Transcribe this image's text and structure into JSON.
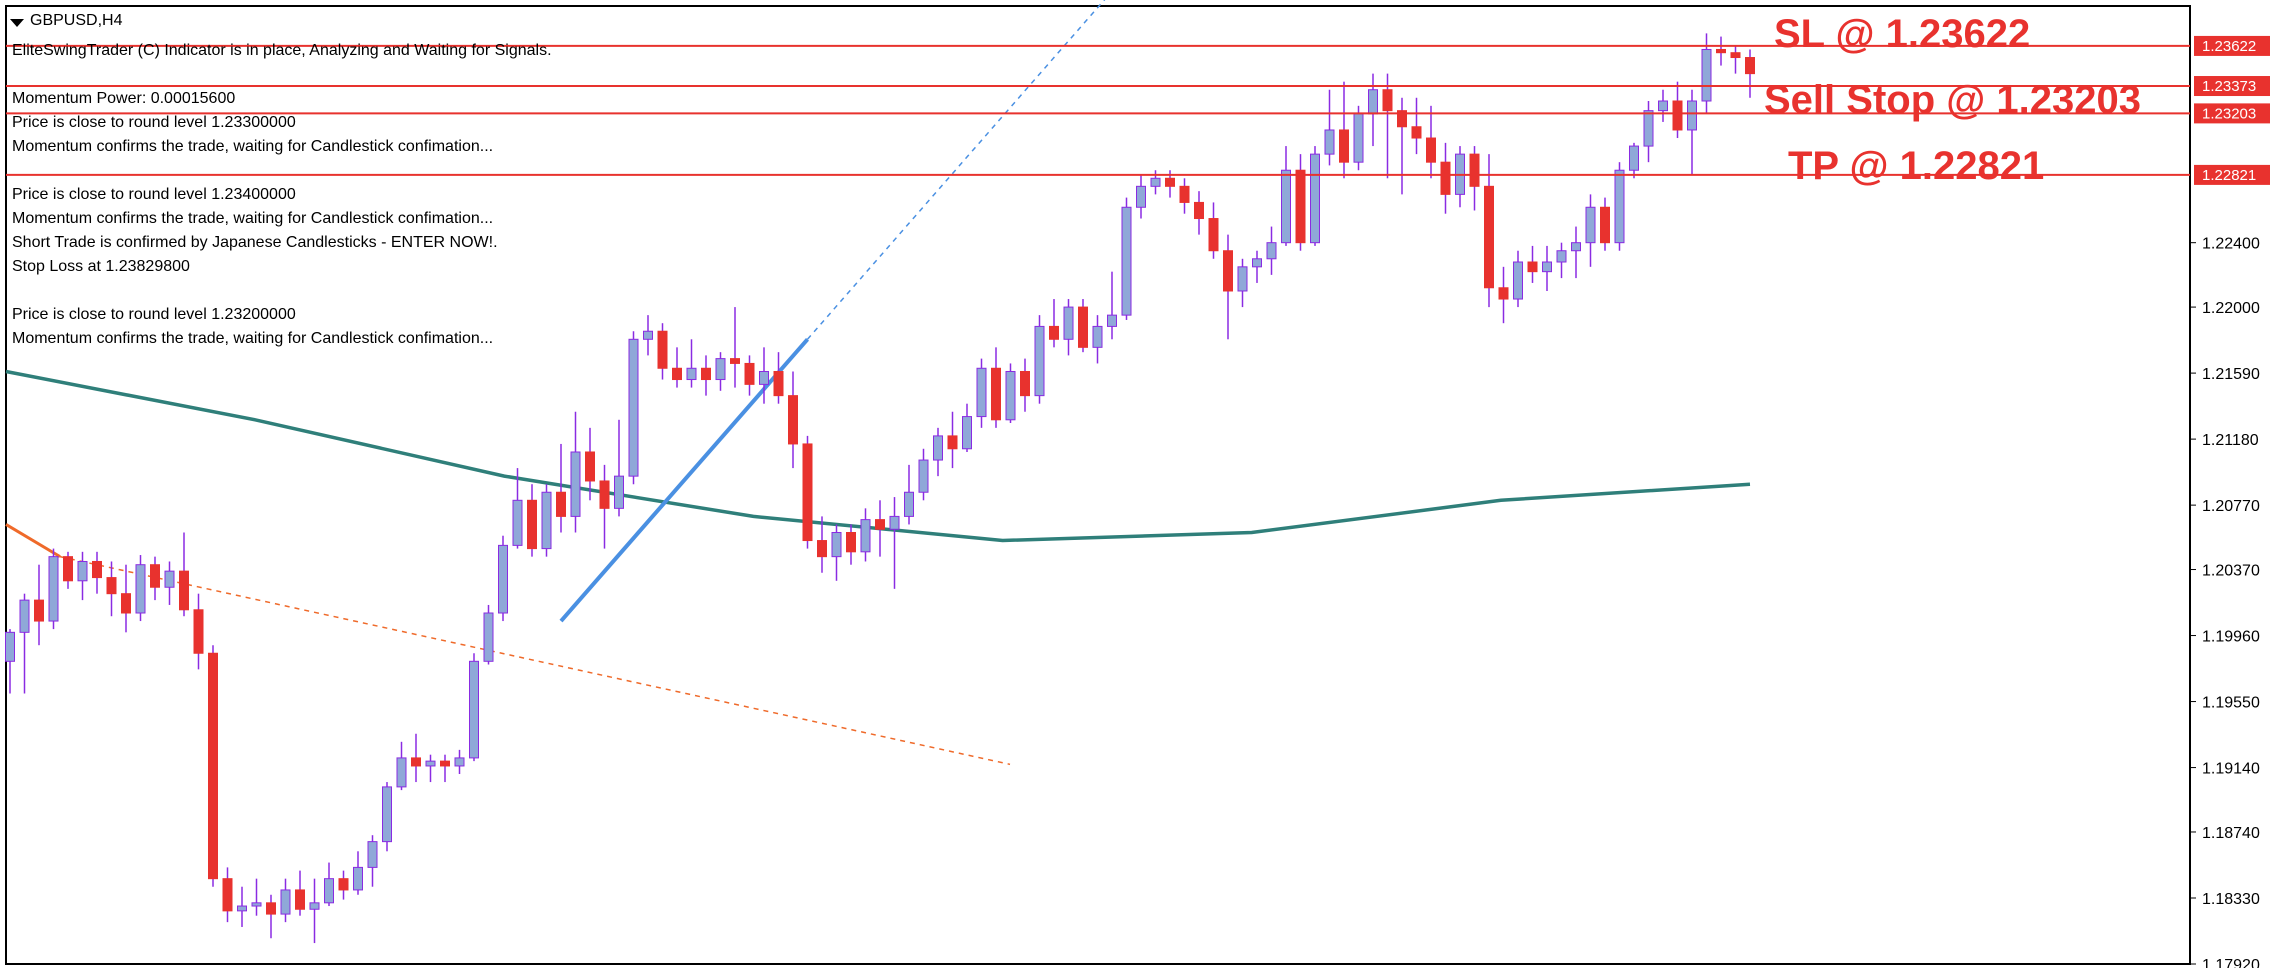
{
  "window": {
    "symbol_title": "GBPUSD,H4"
  },
  "indicator_messages": [
    "EliteSwingTrader (C) Indicator is in place, Analyzing and Waiting for Signals.",
    "Momentum Power: 0.00015600",
    "Price is close to round level 1.23300000",
    "Momentum confirms the trade, waiting for Candlestick confimation...",
    "Price is close to round level 1.23400000",
    "Momentum confirms the trade, waiting for Candlestick confimation...",
    "Short Trade is confirmed by Japanese Candlesticks - ENTER NOW!.",
    "Stop Loss at 1.23829800",
    "Price is close to round level 1.23200000",
    "Momentum confirms the trade, waiting for Candlestick confimation..."
  ],
  "chart_data": {
    "type": "candlestick",
    "symbol": "GBPUSD",
    "timeframe": "H4",
    "ylim": [
      1.1792,
      1.2387
    ],
    "ytick_labels": [
      "1.22400",
      "1.22000",
      "1.21590",
      "1.21180",
      "1.20770",
      "1.20370",
      "1.19960",
      "1.19550",
      "1.19140",
      "1.18740",
      "1.18330",
      "1.17920"
    ],
    "ytick_values": [
      1.224,
      1.22,
      1.2159,
      1.2118,
      1.2077,
      1.2037,
      1.1996,
      1.1955,
      1.1914,
      1.1874,
      1.1833,
      1.1792
    ],
    "horizontal_levels": [
      {
        "label": "SL @ 1.23622",
        "price": 1.23622,
        "tag": "1.23622"
      },
      {
        "label": "",
        "price": 1.23373,
        "tag": "1.23373"
      },
      {
        "label": "Sell Stop @ 1.23203",
        "price": 1.23203,
        "tag": "1.23203"
      },
      {
        "label": "TP @ 1.22821",
        "price": 1.22821,
        "tag": "1.22821"
      }
    ],
    "candles": [
      {
        "o": 1.198,
        "h": 1.2,
        "l": 1.196,
        "c": 1.1998
      },
      {
        "o": 1.1998,
        "h": 1.2022,
        "l": 1.196,
        "c": 1.2018
      },
      {
        "o": 1.2018,
        "h": 1.204,
        "l": 1.199,
        "c": 1.2005
      },
      {
        "o": 1.2005,
        "h": 1.205,
        "l": 1.2,
        "c": 1.2045
      },
      {
        "o": 1.2045,
        "h": 1.2048,
        "l": 1.2025,
        "c": 1.203
      },
      {
        "o": 1.203,
        "h": 1.2048,
        "l": 1.2018,
        "c": 1.2042
      },
      {
        "o": 1.2042,
        "h": 1.2048,
        "l": 1.2022,
        "c": 1.2032
      },
      {
        "o": 1.2032,
        "h": 1.2042,
        "l": 1.2008,
        "c": 1.2022
      },
      {
        "o": 1.2022,
        "h": 1.204,
        "l": 1.1998,
        "c": 1.201
      },
      {
        "o": 1.201,
        "h": 1.2046,
        "l": 1.2005,
        "c": 1.204
      },
      {
        "o": 1.204,
        "h": 1.2045,
        "l": 1.2018,
        "c": 1.2026
      },
      {
        "o": 1.2026,
        "h": 1.2042,
        "l": 1.2015,
        "c": 1.2036
      },
      {
        "o": 1.2036,
        "h": 1.206,
        "l": 1.2008,
        "c": 1.2012
      },
      {
        "o": 1.2012,
        "h": 1.2022,
        "l": 1.1975,
        "c": 1.1985
      },
      {
        "o": 1.1985,
        "h": 1.199,
        "l": 1.184,
        "c": 1.1845
      },
      {
        "o": 1.1845,
        "h": 1.1852,
        "l": 1.1818,
        "c": 1.1825
      },
      {
        "o": 1.1825,
        "h": 1.184,
        "l": 1.1815,
        "c": 1.1828
      },
      {
        "o": 1.1828,
        "h": 1.1845,
        "l": 1.1822,
        "c": 1.183
      },
      {
        "o": 1.183,
        "h": 1.1835,
        "l": 1.1808,
        "c": 1.1823
      },
      {
        "o": 1.1823,
        "h": 1.1845,
        "l": 1.1818,
        "c": 1.1838
      },
      {
        "o": 1.1838,
        "h": 1.185,
        "l": 1.1822,
        "c": 1.1826
      },
      {
        "o": 1.1826,
        "h": 1.1845,
        "l": 1.1805,
        "c": 1.183
      },
      {
        "o": 1.183,
        "h": 1.1855,
        "l": 1.1828,
        "c": 1.1845
      },
      {
        "o": 1.1845,
        "h": 1.185,
        "l": 1.1832,
        "c": 1.1838
      },
      {
        "o": 1.1838,
        "h": 1.1862,
        "l": 1.1835,
        "c": 1.1852
      },
      {
        "o": 1.1852,
        "h": 1.1872,
        "l": 1.184,
        "c": 1.1868
      },
      {
        "o": 1.1868,
        "h": 1.1905,
        "l": 1.1862,
        "c": 1.1902
      },
      {
        "o": 1.1902,
        "h": 1.193,
        "l": 1.19,
        "c": 1.192
      },
      {
        "o": 1.192,
        "h": 1.1935,
        "l": 1.1905,
        "c": 1.1915
      },
      {
        "o": 1.1915,
        "h": 1.1922,
        "l": 1.1905,
        "c": 1.1918
      },
      {
        "o": 1.1918,
        "h": 1.1922,
        "l": 1.1905,
        "c": 1.1915
      },
      {
        "o": 1.1915,
        "h": 1.1925,
        "l": 1.191,
        "c": 1.192
      },
      {
        "o": 1.192,
        "h": 1.1985,
        "l": 1.1918,
        "c": 1.198
      },
      {
        "o": 1.198,
        "h": 1.2015,
        "l": 1.1978,
        "c": 1.201
      },
      {
        "o": 1.201,
        "h": 1.2058,
        "l": 1.2005,
        "c": 1.2052
      },
      {
        "o": 1.2052,
        "h": 1.21,
        "l": 1.205,
        "c": 1.208
      },
      {
        "o": 1.208,
        "h": 1.209,
        "l": 1.2045,
        "c": 1.205
      },
      {
        "o": 1.205,
        "h": 1.209,
        "l": 1.2045,
        "c": 1.2085
      },
      {
        "o": 1.2085,
        "h": 1.2115,
        "l": 1.206,
        "c": 1.207
      },
      {
        "o": 1.207,
        "h": 1.2135,
        "l": 1.206,
        "c": 1.211
      },
      {
        "o": 1.211,
        "h": 1.2125,
        "l": 1.208,
        "c": 1.2092
      },
      {
        "o": 1.2092,
        "h": 1.2102,
        "l": 1.205,
        "c": 1.2075
      },
      {
        "o": 1.2075,
        "h": 1.213,
        "l": 1.207,
        "c": 1.2095
      },
      {
        "o": 1.2095,
        "h": 1.2185,
        "l": 1.209,
        "c": 1.218
      },
      {
        "o": 1.218,
        "h": 1.2195,
        "l": 1.217,
        "c": 1.2185
      },
      {
        "o": 1.2185,
        "h": 1.219,
        "l": 1.2155,
        "c": 1.2162
      },
      {
        "o": 1.2162,
        "h": 1.2175,
        "l": 1.215,
        "c": 1.2155
      },
      {
        "o": 1.2155,
        "h": 1.218,
        "l": 1.215,
        "c": 1.2162
      },
      {
        "o": 1.2162,
        "h": 1.217,
        "l": 1.2145,
        "c": 1.2155
      },
      {
        "o": 1.2155,
        "h": 1.2172,
        "l": 1.2148,
        "c": 1.2168
      },
      {
        "o": 1.2168,
        "h": 1.22,
        "l": 1.215,
        "c": 1.2165
      },
      {
        "o": 1.2165,
        "h": 1.217,
        "l": 1.2145,
        "c": 1.2152
      },
      {
        "o": 1.2152,
        "h": 1.2175,
        "l": 1.214,
        "c": 1.216
      },
      {
        "o": 1.216,
        "h": 1.2172,
        "l": 1.214,
        "c": 1.2145
      },
      {
        "o": 1.2145,
        "h": 1.216,
        "l": 1.21,
        "c": 1.2115
      },
      {
        "o": 1.2115,
        "h": 1.212,
        "l": 1.205,
        "c": 1.2055
      },
      {
        "o": 1.2055,
        "h": 1.207,
        "l": 1.2035,
        "c": 1.2045
      },
      {
        "o": 1.2045,
        "h": 1.2065,
        "l": 1.203,
        "c": 1.206
      },
      {
        "o": 1.206,
        "h": 1.2065,
        "l": 1.204,
        "c": 1.2048
      },
      {
        "o": 1.2048,
        "h": 1.2075,
        "l": 1.2042,
        "c": 1.2068
      },
      {
        "o": 1.2068,
        "h": 1.208,
        "l": 1.2045,
        "c": 1.2062
      },
      {
        "o": 1.2062,
        "h": 1.2082,
        "l": 1.2025,
        "c": 1.207
      },
      {
        "o": 1.207,
        "h": 1.2102,
        "l": 1.2065,
        "c": 1.2085
      },
      {
        "o": 1.2085,
        "h": 1.2112,
        "l": 1.208,
        "c": 1.2105
      },
      {
        "o": 1.2105,
        "h": 1.2125,
        "l": 1.2095,
        "c": 1.212
      },
      {
        "o": 1.212,
        "h": 1.2135,
        "l": 1.21,
        "c": 1.2112
      },
      {
        "o": 1.2112,
        "h": 1.214,
        "l": 1.211,
        "c": 1.2132
      },
      {
        "o": 1.2132,
        "h": 1.2168,
        "l": 1.2125,
        "c": 1.2162
      },
      {
        "o": 1.2162,
        "h": 1.2175,
        "l": 1.2125,
        "c": 1.213
      },
      {
        "o": 1.213,
        "h": 1.2165,
        "l": 1.2128,
        "c": 1.216
      },
      {
        "o": 1.216,
        "h": 1.2168,
        "l": 1.2135,
        "c": 1.2145
      },
      {
        "o": 1.2145,
        "h": 1.2195,
        "l": 1.214,
        "c": 1.2188
      },
      {
        "o": 1.2188,
        "h": 1.2205,
        "l": 1.2175,
        "c": 1.218
      },
      {
        "o": 1.218,
        "h": 1.2205,
        "l": 1.217,
        "c": 1.22
      },
      {
        "o": 1.22,
        "h": 1.2205,
        "l": 1.2172,
        "c": 1.2175
      },
      {
        "o": 1.2175,
        "h": 1.2195,
        "l": 1.2165,
        "c": 1.2188
      },
      {
        "o": 1.2188,
        "h": 1.2222,
        "l": 1.218,
        "c": 1.2195
      },
      {
        "o": 1.2195,
        "h": 1.2268,
        "l": 1.2192,
        "c": 1.2262
      },
      {
        "o": 1.2262,
        "h": 1.2282,
        "l": 1.2255,
        "c": 1.2275
      },
      {
        "o": 1.2275,
        "h": 1.2285,
        "l": 1.227,
        "c": 1.228
      },
      {
        "o": 1.228,
        "h": 1.2285,
        "l": 1.2268,
        "c": 1.2275
      },
      {
        "o": 1.2275,
        "h": 1.228,
        "l": 1.2258,
        "c": 1.2265
      },
      {
        "o": 1.2265,
        "h": 1.2272,
        "l": 1.2245,
        "c": 1.2255
      },
      {
        "o": 1.2255,
        "h": 1.2265,
        "l": 1.223,
        "c": 1.2235
      },
      {
        "o": 1.2235,
        "h": 1.2245,
        "l": 1.218,
        "c": 1.221
      },
      {
        "o": 1.221,
        "h": 1.223,
        "l": 1.22,
        "c": 1.2225
      },
      {
        "o": 1.2225,
        "h": 1.2235,
        "l": 1.2215,
        "c": 1.223
      },
      {
        "o": 1.223,
        "h": 1.225,
        "l": 1.222,
        "c": 1.224
      },
      {
        "o": 1.224,
        "h": 1.23,
        "l": 1.2238,
        "c": 1.2285
      },
      {
        "o": 1.2285,
        "h": 1.2295,
        "l": 1.2235,
        "c": 1.224
      },
      {
        "o": 1.224,
        "h": 1.23,
        "l": 1.2238,
        "c": 1.2295
      },
      {
        "o": 1.2295,
        "h": 1.2335,
        "l": 1.2288,
        "c": 1.231
      },
      {
        "o": 1.231,
        "h": 1.234,
        "l": 1.228,
        "c": 1.229
      },
      {
        "o": 1.229,
        "h": 1.2325,
        "l": 1.2285,
        "c": 1.232
      },
      {
        "o": 1.232,
        "h": 1.2345,
        "l": 1.23,
        "c": 1.2335
      },
      {
        "o": 1.2335,
        "h": 1.2345,
        "l": 1.228,
        "c": 1.2322
      },
      {
        "o": 1.2322,
        "h": 1.233,
        "l": 1.227,
        "c": 1.2312
      },
      {
        "o": 1.2312,
        "h": 1.233,
        "l": 1.2295,
        "c": 1.2305
      },
      {
        "o": 1.2305,
        "h": 1.2325,
        "l": 1.228,
        "c": 1.229
      },
      {
        "o": 1.229,
        "h": 1.2302,
        "l": 1.2258,
        "c": 1.227
      },
      {
        "o": 1.227,
        "h": 1.23,
        "l": 1.2262,
        "c": 1.2295
      },
      {
        "o": 1.2295,
        "h": 1.23,
        "l": 1.226,
        "c": 1.2275
      },
      {
        "o": 1.2275,
        "h": 1.2295,
        "l": 1.22,
        "c": 1.2212
      },
      {
        "o": 1.2212,
        "h": 1.2225,
        "l": 1.219,
        "c": 1.2205
      },
      {
        "o": 1.2205,
        "h": 1.2235,
        "l": 1.22,
        "c": 1.2228
      },
      {
        "o": 1.2228,
        "h": 1.2238,
        "l": 1.2215,
        "c": 1.2222
      },
      {
        "o": 1.2222,
        "h": 1.2238,
        "l": 1.221,
        "c": 1.2228
      },
      {
        "o": 1.2228,
        "h": 1.224,
        "l": 1.2218,
        "c": 1.2235
      },
      {
        "o": 1.2235,
        "h": 1.225,
        "l": 1.2218,
        "c": 1.224
      },
      {
        "o": 1.224,
        "h": 1.227,
        "l": 1.2225,
        "c": 1.2262
      },
      {
        "o": 1.2262,
        "h": 1.2268,
        "l": 1.2235,
        "c": 1.224
      },
      {
        "o": 1.224,
        "h": 1.229,
        "l": 1.2235,
        "c": 1.2285
      },
      {
        "o": 1.2285,
        "h": 1.2302,
        "l": 1.228,
        "c": 1.23
      },
      {
        "o": 1.23,
        "h": 1.2328,
        "l": 1.229,
        "c": 1.2322
      },
      {
        "o": 1.2322,
        "h": 1.2335,
        "l": 1.2315,
        "c": 1.2328
      },
      {
        "o": 1.2328,
        "h": 1.234,
        "l": 1.2305,
        "c": 1.231
      },
      {
        "o": 1.231,
        "h": 1.2335,
        "l": 1.2282,
        "c": 1.2328
      },
      {
        "o": 1.2328,
        "h": 1.237,
        "l": 1.232,
        "c": 1.236
      },
      {
        "o": 1.236,
        "h": 1.2368,
        "l": 1.235,
        "c": 1.2358
      },
      {
        "o": 1.2358,
        "h": 1.2362,
        "l": 1.2345,
        "c": 1.2355
      },
      {
        "o": 1.2355,
        "h": 1.236,
        "l": 1.233,
        "c": 1.2345
      }
    ],
    "moving_average": [
      1.216,
      1.213,
      1.2095,
      1.207,
      1.2055,
      1.206,
      1.208,
      1.209
    ],
    "colors": {
      "bull_body": "#8fa8d8",
      "bear_body": "#e8322e",
      "wick": "#8a2be2",
      "moving_average": "#2f7f7a",
      "trendline": "#4a90e2",
      "downtrend": "#ef6a2a",
      "level_line": "#e8322e",
      "price_tag_bg": "#e8322e",
      "current_price_tag_bg": "#2b2b2b"
    },
    "grid": false
  }
}
